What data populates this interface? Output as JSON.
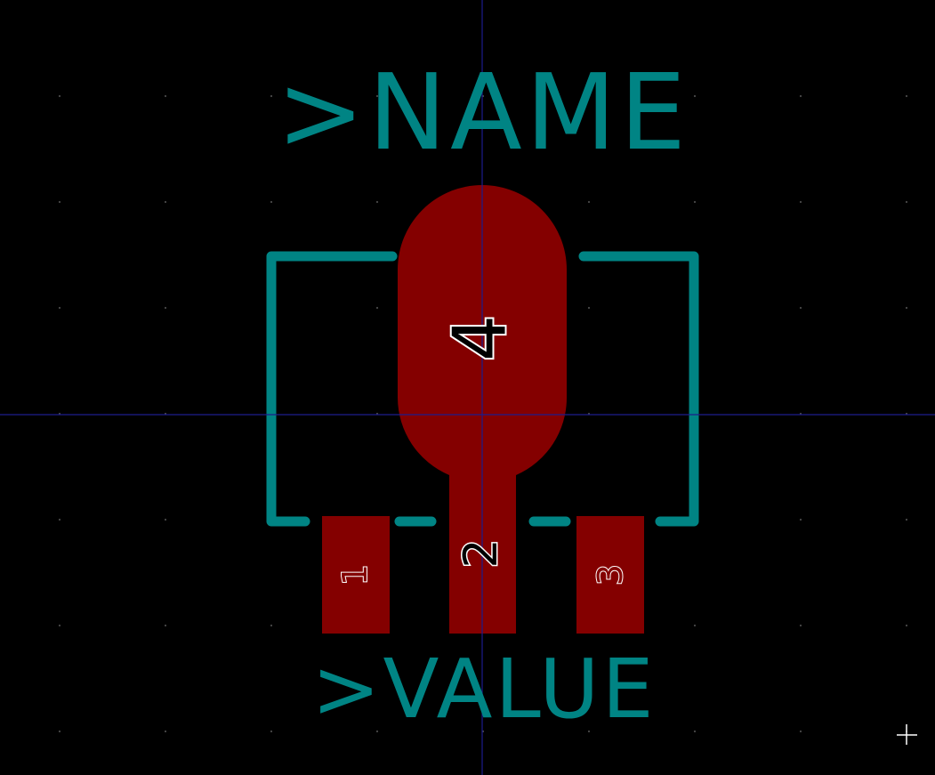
{
  "editor": {
    "name_label": ">NAME",
    "value_label": ">VALUE"
  },
  "pads": [
    {
      "number": "1"
    },
    {
      "number": "2"
    },
    {
      "number": "3"
    },
    {
      "number": "4"
    }
  ],
  "colors": {
    "background": "#000000",
    "silkscreen": "#008484",
    "copper": "#840000",
    "pad_number": "#ffffff",
    "crosshair": "#1c1c8c",
    "grid": "#4a4a4a",
    "cursor": "#ffffff"
  }
}
